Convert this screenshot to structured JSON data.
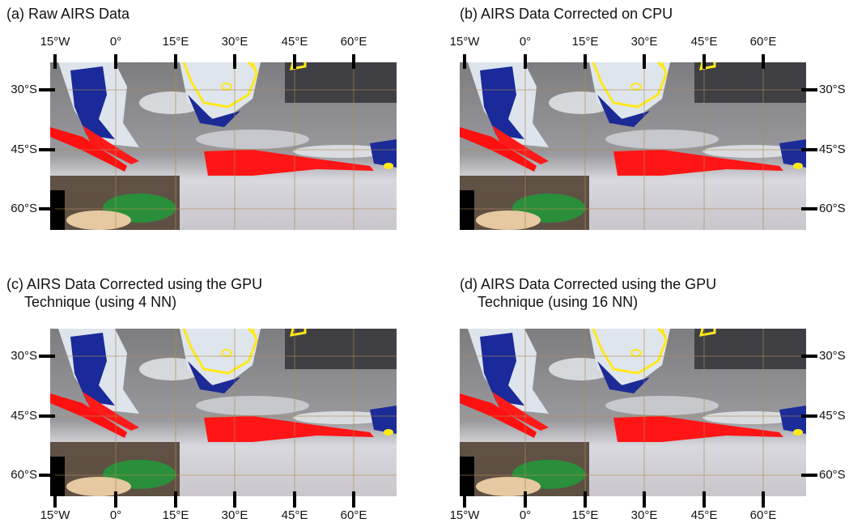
{
  "panels": [
    {
      "title_lines": [
        "(a) Raw AIRS Data"
      ]
    },
    {
      "title_lines": [
        "(b) AIRS Data Corrected on CPU"
      ]
    },
    {
      "title_lines": [
        "(c) AIRS Data Corrected using the GPU",
        "Technique (using 4 NN)"
      ]
    },
    {
      "title_lines": [
        "(d) AIRS Data Corrected using the GPU",
        "Technique (using 16 NN)"
      ]
    }
  ],
  "x_ticks": [
    "15°W",
    "0°",
    "15°E",
    "30°E",
    "45°E",
    "60°E"
  ],
  "y_ticks": [
    "30°S",
    "45°S",
    "60°S"
  ]
}
